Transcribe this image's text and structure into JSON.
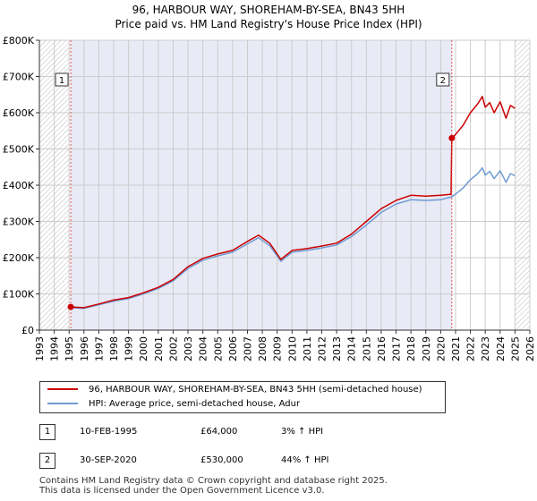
{
  "colors": {
    "price_line": "#cc0000",
    "hpi_line": "#6f9bd1",
    "shade": "#e8eaf6",
    "grid": "#cccccc",
    "event_line": "#e05050"
  },
  "chart_data": {
    "type": "line",
    "title": "96, HARBOUR WAY, SHOREHAM-BY-SEA, BN43 5HH",
    "subtitle": "Price paid vs. HM Land Registry's House Price Index (HPI)",
    "xlabel": "",
    "ylabel": "",
    "xlim": [
      1993,
      2026
    ],
    "ylim": [
      0,
      800000
    ],
    "x_ticks": [
      1993,
      1994,
      1995,
      1996,
      1997,
      1998,
      1999,
      2000,
      2001,
      2002,
      2003,
      2004,
      2005,
      2006,
      2007,
      2008,
      2009,
      2010,
      2011,
      2012,
      2013,
      2014,
      2015,
      2016,
      2017,
      2018,
      2019,
      2020,
      2021,
      2022,
      2023,
      2024,
      2025,
      2026
    ],
    "x_tick_labels": [
      "1993",
      "1994",
      "1995",
      "1996",
      "1997",
      "1998",
      "1999",
      "2000",
      "2001",
      "2002",
      "2003",
      "2004",
      "2005",
      "2006",
      "2007",
      "2008",
      "2009",
      "2010",
      "2011",
      "2012",
      "2013",
      "2014",
      "2015",
      "2016",
      "2017",
      "2018",
      "2019",
      "2020",
      "2021",
      "2022",
      "2023",
      "2024",
      "2025",
      "2026"
    ],
    "y_ticks": [
      0,
      100000,
      200000,
      300000,
      400000,
      500000,
      600000,
      700000,
      800000
    ],
    "y_tick_labels": [
      "£0",
      "£100K",
      "£200K",
      "£300K",
      "£400K",
      "£500K",
      "£600K",
      "£700K",
      "£800K"
    ],
    "grid": true,
    "shaded_range": [
      1995.11,
      2020.75
    ],
    "hatched_before": 1995,
    "hatched_after": 2025.0,
    "series": [
      {
        "name": "96, HARBOUR WAY, SHOREHAM-BY-SEA, BN43 5HH (semi-detached house)",
        "color": "#cc0000",
        "x": [
          1995.11,
          1996.0,
          1997.0,
          1998.0,
          1999.0,
          2000.0,
          2001.0,
          2002.0,
          2003.0,
          2004.0,
          2005.0,
          2006.0,
          2007.0,
          2007.75,
          2008.5,
          2009.25,
          2010.0,
          2011.0,
          2012.0,
          2013.0,
          2014.0,
          2015.0,
          2016.0,
          2017.0,
          2018.0,
          2019.0,
          2020.0,
          2020.7,
          2020.75,
          2021.0,
          2021.5,
          2022.0,
          2022.5,
          2022.8,
          2023.0,
          2023.3,
          2023.6,
          2024.0,
          2024.4,
          2024.7,
          2025.0
        ],
        "values": [
          64000,
          62000,
          72000,
          83000,
          90000,
          103000,
          118000,
          140000,
          175000,
          198000,
          210000,
          220000,
          245000,
          262000,
          240000,
          195000,
          220000,
          225000,
          232000,
          240000,
          265000,
          300000,
          335000,
          358000,
          372000,
          370000,
          372000,
          375000,
          530000,
          540000,
          565000,
          600000,
          625000,
          645000,
          615000,
          628000,
          600000,
          630000,
          585000,
          620000,
          612000
        ]
      },
      {
        "name": "HPI: Average price, semi-detached house, Adur",
        "color": "#6f9bd1",
        "x": [
          1995.11,
          1996.0,
          1997.0,
          1998.0,
          1999.0,
          2000.0,
          2001.0,
          2002.0,
          2003.0,
          2004.0,
          2005.0,
          2006.0,
          2007.0,
          2007.75,
          2008.5,
          2009.25,
          2010.0,
          2011.0,
          2012.0,
          2013.0,
          2014.0,
          2015.0,
          2016.0,
          2017.0,
          2018.0,
          2019.0,
          2020.0,
          2020.75,
          2021.0,
          2021.5,
          2022.0,
          2022.5,
          2022.8,
          2023.0,
          2023.3,
          2023.6,
          2024.0,
          2024.4,
          2024.7,
          2025.0
        ],
        "values": [
          62000,
          60000,
          70000,
          80000,
          87000,
          100000,
          115000,
          136000,
          170000,
          193000,
          205000,
          215000,
          238000,
          255000,
          233000,
          190000,
          215000,
          220000,
          227000,
          235000,
          258000,
          290000,
          325000,
          348000,
          360000,
          358000,
          360000,
          368000,
          375000,
          392000,
          415000,
          432000,
          448000,
          428000,
          438000,
          418000,
          440000,
          408000,
          432000,
          426000
        ]
      }
    ],
    "events": [
      {
        "label": "1",
        "x": 1995.11,
        "value": 64000
      },
      {
        "label": "2",
        "x": 2020.75,
        "value": 530000
      }
    ]
  },
  "legend": {
    "items": [
      {
        "label": "96, HARBOUR WAY, SHOREHAM-BY-SEA, BN43 5HH (semi-detached house)"
      },
      {
        "label": "HPI: Average price, semi-detached house, Adur"
      }
    ]
  },
  "transactions": [
    {
      "num": "1",
      "date": "10-FEB-1995",
      "price": "£64,000",
      "hpi": "3% ↑ HPI"
    },
    {
      "num": "2",
      "date": "30-SEP-2020",
      "price": "£530,000",
      "hpi": "44% ↑ HPI"
    }
  ],
  "footer": {
    "line1": "Contains HM Land Registry data © Crown copyright and database right 2025.",
    "line2": "This data is licensed under the Open Government Licence v3.0."
  }
}
